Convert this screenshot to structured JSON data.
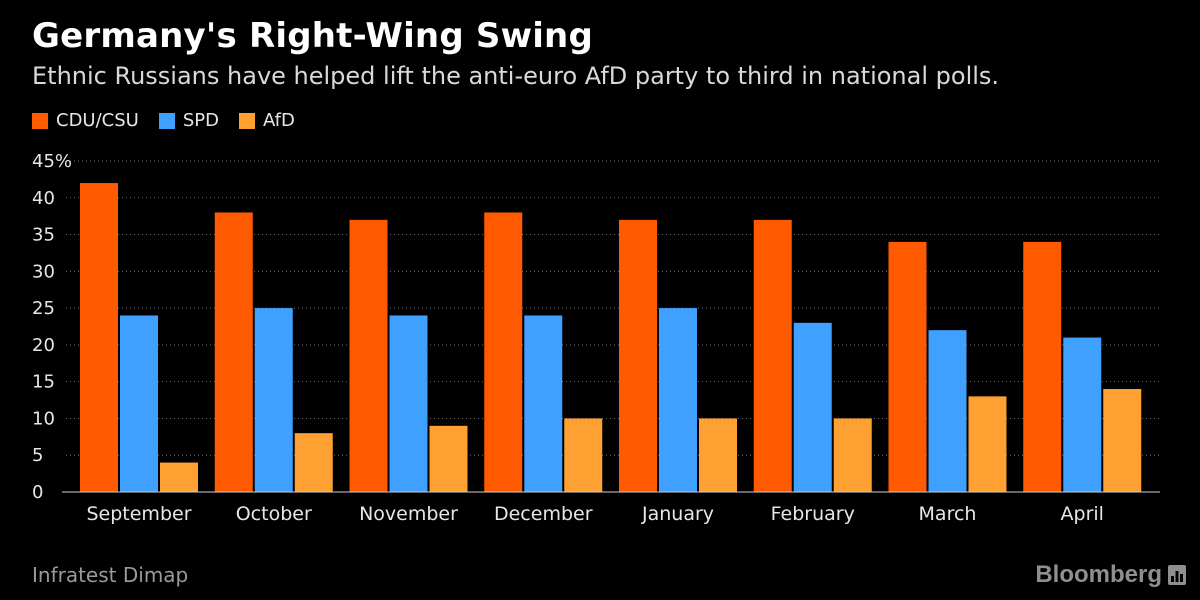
{
  "header": {
    "title": "Germany's Right-Wing Swing",
    "subtitle": "Ethnic Russians have helped lift the anti-euro AfD party to third in national polls."
  },
  "footer": {
    "source": "Infratest Dimap",
    "brand": "Bloomberg"
  },
  "colors": {
    "CDU/CSU": "#ff5a00",
    "SPD": "#3fa0ff",
    "AfD": "#ffa033",
    "grid": "#6a6a6a",
    "axis": "#cfcfcf"
  },
  "chart_data": {
    "type": "bar",
    "categories": [
      "September",
      "October",
      "November",
      "December",
      "January",
      "February",
      "March",
      "April"
    ],
    "series": [
      {
        "name": "CDU/CSU",
        "values": [
          42,
          38,
          37,
          38,
          37,
          37,
          34,
          34
        ]
      },
      {
        "name": "SPD",
        "values": [
          24,
          25,
          24,
          24,
          25,
          23,
          22,
          21
        ]
      },
      {
        "name": "AfD",
        "values": [
          4,
          8,
          9,
          10,
          10,
          10,
          13,
          14
        ]
      }
    ],
    "title": "Germany's Right-Wing Swing",
    "subtitle": "Ethnic Russians have helped lift the anti-euro AfD party to third in national polls.",
    "ylim": [
      0,
      45
    ],
    "yticks": [
      "0",
      "5",
      "10",
      "15",
      "20",
      "25",
      "30",
      "35",
      "40",
      "45%"
    ],
    "grid": true,
    "legend": "top-left"
  }
}
